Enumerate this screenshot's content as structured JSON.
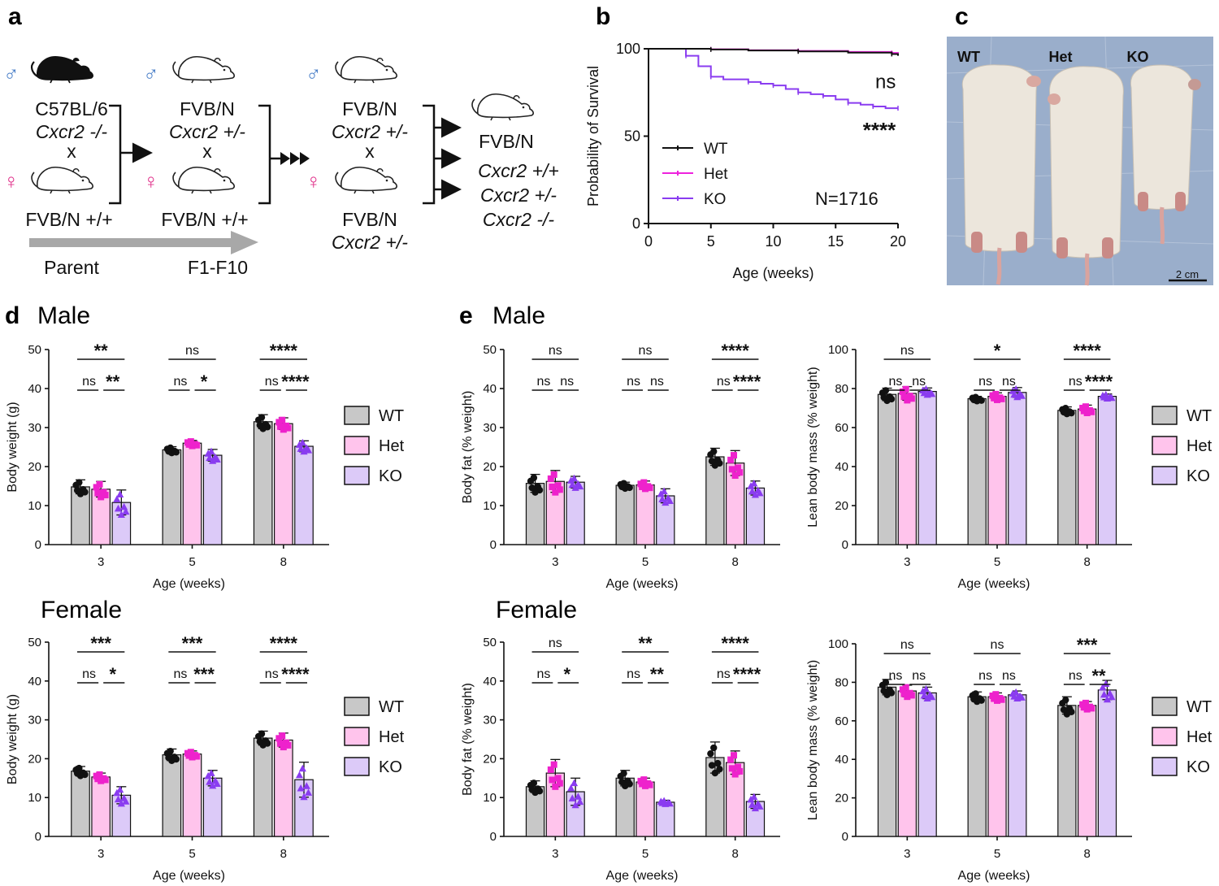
{
  "panels": {
    "a": "a",
    "b": "b",
    "c": "c",
    "d": "d",
    "e": "e"
  },
  "cross": {
    "col1": {
      "sym_m": "♂",
      "sym_f": "♀",
      "strain_m": "C57BL/6",
      "geno_m": "Cxcr2 -/-",
      "x": "x",
      "female": "FVB/N +/+"
    },
    "col2": {
      "sym_m": "♂",
      "sym_f": "♀",
      "strain_m": "FVB/N",
      "geno_m": "Cxcr2 +/-",
      "x": "x",
      "female": "FVB/N +/+"
    },
    "col3": {
      "sym_m": "♂",
      "strain_m": "FVB/N",
      "geno_m": "Cxcr2 +/-",
      "x": "x",
      "strain_f": "FVB/N",
      "geno_f": "Cxcr2 +/-"
    },
    "col4": {
      "strain": "FVB/N",
      "g1": "Cxcr2 +/+",
      "g2": "Cxcr2 +/-",
      "g3": "Cxcr2 -/-"
    },
    "parent": "Parent",
    "f1": "F1-F10",
    "colors": {
      "male": "#4a7fc8",
      "female": "#e0308a"
    }
  },
  "photo": {
    "labels": [
      "WT",
      "Het",
      "KO"
    ],
    "scale": "2 cm",
    "bg_color": "#9aaecb"
  },
  "section_titles": {
    "d_male": "Male",
    "e_male": "Male",
    "d_female": "Female",
    "e_female": "Female"
  },
  "legend": {
    "items": [
      "WT",
      "Het",
      "KO"
    ]
  },
  "colors": {
    "WT_bar": "#c8c8c8",
    "Het_bar": "#ffc4ec",
    "KO_bar": "#dccaf8",
    "WT_pt": "#111111",
    "Het_pt": "#ee22cc",
    "KO_pt": "#8a3cf0",
    "surv_WT": "#111111",
    "surv_Het": "#ee22dd",
    "surv_KO": "#8a3cf0"
  },
  "chart_data": [
    {
      "id": "b",
      "type": "line",
      "xlabel": "Age (weeks)",
      "ylabel": "Probability of Survival",
      "xlim": [
        0,
        20
      ],
      "ylim": [
        0,
        100
      ],
      "xticks": [
        0,
        5,
        10,
        15,
        20
      ],
      "yticks": [
        0,
        50,
        100
      ],
      "legend_pos": "lower-left",
      "n_label": "N=1716",
      "series": [
        {
          "name": "WT",
          "x": [
            0,
            2.5,
            5,
            8,
            12,
            16,
            19.5,
            20
          ],
          "values": [
            100,
            100,
            99.6,
            99,
            98.5,
            97.8,
            97,
            96
          ]
        },
        {
          "name": "Het",
          "x": [
            0,
            2.5,
            5,
            8,
            12,
            16,
            19.5,
            20
          ],
          "values": [
            100,
            100,
            99.7,
            99.2,
            98.8,
            98.2,
            97.6,
            97.5
          ]
        },
        {
          "name": "KO",
          "x": [
            0,
            2.5,
            3,
            4,
            5,
            6,
            8,
            9,
            10,
            11,
            12,
            13,
            14,
            15,
            16,
            17,
            18,
            19,
            20
          ],
          "values": [
            100,
            100,
            96,
            90,
            84,
            82.5,
            81,
            80,
            79,
            77,
            75,
            74,
            73,
            71,
            69,
            68,
            67,
            66,
            66
          ]
        }
      ],
      "annotations": [
        {
          "text": "ns",
          "series": "WT"
        },
        {
          "text": "****",
          "series": "KO"
        }
      ]
    },
    {
      "id": "d-male",
      "type": "bar",
      "categories": [
        "3",
        "5",
        "8"
      ],
      "groups": [
        "WT",
        "Het",
        "KO"
      ],
      "ylabel": "Body weight (g)",
      "xlabel": "Age (weeks)",
      "ylim": [
        0,
        50
      ],
      "yticks": [
        0,
        10,
        20,
        30,
        40,
        50
      ],
      "values": [
        [
          14.8,
          14.2,
          10.8
        ],
        [
          24.3,
          26.0,
          22.9
        ],
        [
          31.5,
          31.0,
          25.2
        ]
      ],
      "errors": [
        [
          1.8,
          2.0,
          3.2
        ],
        [
          0.8,
          0.7,
          1.5
        ],
        [
          1.8,
          1.5,
          1.4
        ]
      ],
      "sig": [
        {
          "top": "**",
          "left": "ns",
          "right": "**"
        },
        {
          "top": "ns",
          "left": "ns",
          "right": "*"
        },
        {
          "top": "****",
          "left": "ns",
          "right": "****"
        }
      ]
    },
    {
      "id": "d-female",
      "type": "bar",
      "categories": [
        "3",
        "5",
        "8"
      ],
      "groups": [
        "WT",
        "Het",
        "KO"
      ],
      "ylabel": "Body weight (g)",
      "xlabel": "Age (weeks)",
      "ylim": [
        0,
        50
      ],
      "yticks": [
        0,
        10,
        20,
        30,
        40,
        50
      ],
      "values": [
        [
          16.8,
          15.3,
          10.6
        ],
        [
          21.0,
          21.2,
          15.0
        ],
        [
          25.3,
          24.8,
          14.6
        ]
      ],
      "errors": [
        [
          1.2,
          1.0,
          2.2
        ],
        [
          1.5,
          0.8,
          2.0
        ],
        [
          1.8,
          1.8,
          4.5
        ]
      ],
      "sig": [
        {
          "top": "***",
          "left": "ns",
          "right": "*"
        },
        {
          "top": "***",
          "left": "ns",
          "right": "***"
        },
        {
          "top": "****",
          "left": "ns",
          "right": "****"
        }
      ]
    },
    {
      "id": "e-male-fat",
      "type": "bar",
      "categories": [
        "3",
        "5",
        "8"
      ],
      "groups": [
        "WT",
        "Het",
        "KO"
      ],
      "ylabel": "Body fat (% weight)",
      "xlabel": "Age (weeks)",
      "ylim": [
        0,
        50
      ],
      "yticks": [
        0,
        10,
        20,
        30,
        40,
        50
      ],
      "values": [
        [
          15.7,
          16.2,
          16.0
        ],
        [
          15.2,
          15.3,
          12.5
        ],
        [
          22.5,
          20.9,
          14.5
        ]
      ],
      "errors": [
        [
          2.3,
          2.8,
          1.5
        ],
        [
          0.8,
          1.0,
          1.8
        ],
        [
          2.2,
          3.2,
          1.8
        ]
      ],
      "sig": [
        {
          "top": "ns",
          "left": "ns",
          "right": "ns"
        },
        {
          "top": "ns",
          "left": "ns",
          "right": "ns"
        },
        {
          "top": "****",
          "left": "ns",
          "right": "****"
        }
      ]
    },
    {
      "id": "e-male-lean",
      "type": "bar",
      "categories": [
        "3",
        "5",
        "8"
      ],
      "groups": [
        "WT",
        "Het",
        "KO"
      ],
      "ylabel": "Lean body mass (% weight)",
      "xlabel": "Age (weeks)",
      "ylim": [
        0,
        100
      ],
      "yticks": [
        0,
        20,
        40,
        60,
        80,
        100
      ],
      "values": [
        [
          77.0,
          77.5,
          78.5
        ],
        [
          74.8,
          76.0,
          78.0
        ],
        [
          68.8,
          69.5,
          76.0
        ]
      ],
      "errors": [
        [
          3.2,
          3.5,
          1.8
        ],
        [
          1.2,
          1.8,
          2.5
        ],
        [
          1.8,
          2.0,
          1.2
        ]
      ],
      "sig": [
        {
          "top": "ns",
          "left": "ns",
          "right": "ns"
        },
        {
          "top": "*",
          "left": "ns",
          "right": "ns"
        },
        {
          "top": "****",
          "left": "ns",
          "right": "****"
        }
      ]
    },
    {
      "id": "e-female-fat",
      "type": "bar",
      "categories": [
        "3",
        "5",
        "8"
      ],
      "groups": [
        "WT",
        "Het",
        "KO"
      ],
      "ylabel": "Body fat (% weight)",
      "xlabel": "Age (weeks)",
      "ylim": [
        0,
        50
      ],
      "yticks": [
        0,
        10,
        20,
        30,
        40,
        50
      ],
      "values": [
        [
          12.8,
          16.3,
          11.5
        ],
        [
          15.0,
          14.0,
          8.8
        ],
        [
          20.3,
          19.0,
          9.0
        ]
      ],
      "errors": [
        [
          1.5,
          3.5,
          3.5
        ],
        [
          2.0,
          1.0,
          0.5
        ],
        [
          4.0,
          3.0,
          1.8
        ]
      ],
      "sig": [
        {
          "top": "ns",
          "left": "ns",
          "right": "*"
        },
        {
          "top": "**",
          "left": "ns",
          "right": "**"
        },
        {
          "top": "****",
          "left": "ns",
          "right": "****"
        }
      ]
    },
    {
      "id": "e-female-lean",
      "type": "bar",
      "categories": [
        "3",
        "5",
        "8"
      ],
      "groups": [
        "WT",
        "Het",
        "KO"
      ],
      "ylabel": "Lean body mass (% weight)",
      "xlabel": "Age (weeks)",
      "ylim": [
        0,
        100
      ],
      "yticks": [
        0,
        20,
        40,
        60,
        80,
        100
      ],
      "values": [
        [
          77.5,
          75.5,
          74.5
        ],
        [
          72.5,
          72.5,
          73.5
        ],
        [
          68.0,
          68.0,
          76.0
        ]
      ],
      "errors": [
        [
          4.0,
          3.0,
          3.0
        ],
        [
          2.5,
          2.0,
          2.0
        ],
        [
          4.5,
          2.0,
          5.0
        ]
      ],
      "sig": [
        {
          "top": "ns",
          "left": "ns",
          "right": "ns"
        },
        {
          "top": "ns",
          "left": "ns",
          "right": "ns"
        },
        {
          "top": "***",
          "left": "ns",
          "right": "**"
        }
      ]
    }
  ]
}
